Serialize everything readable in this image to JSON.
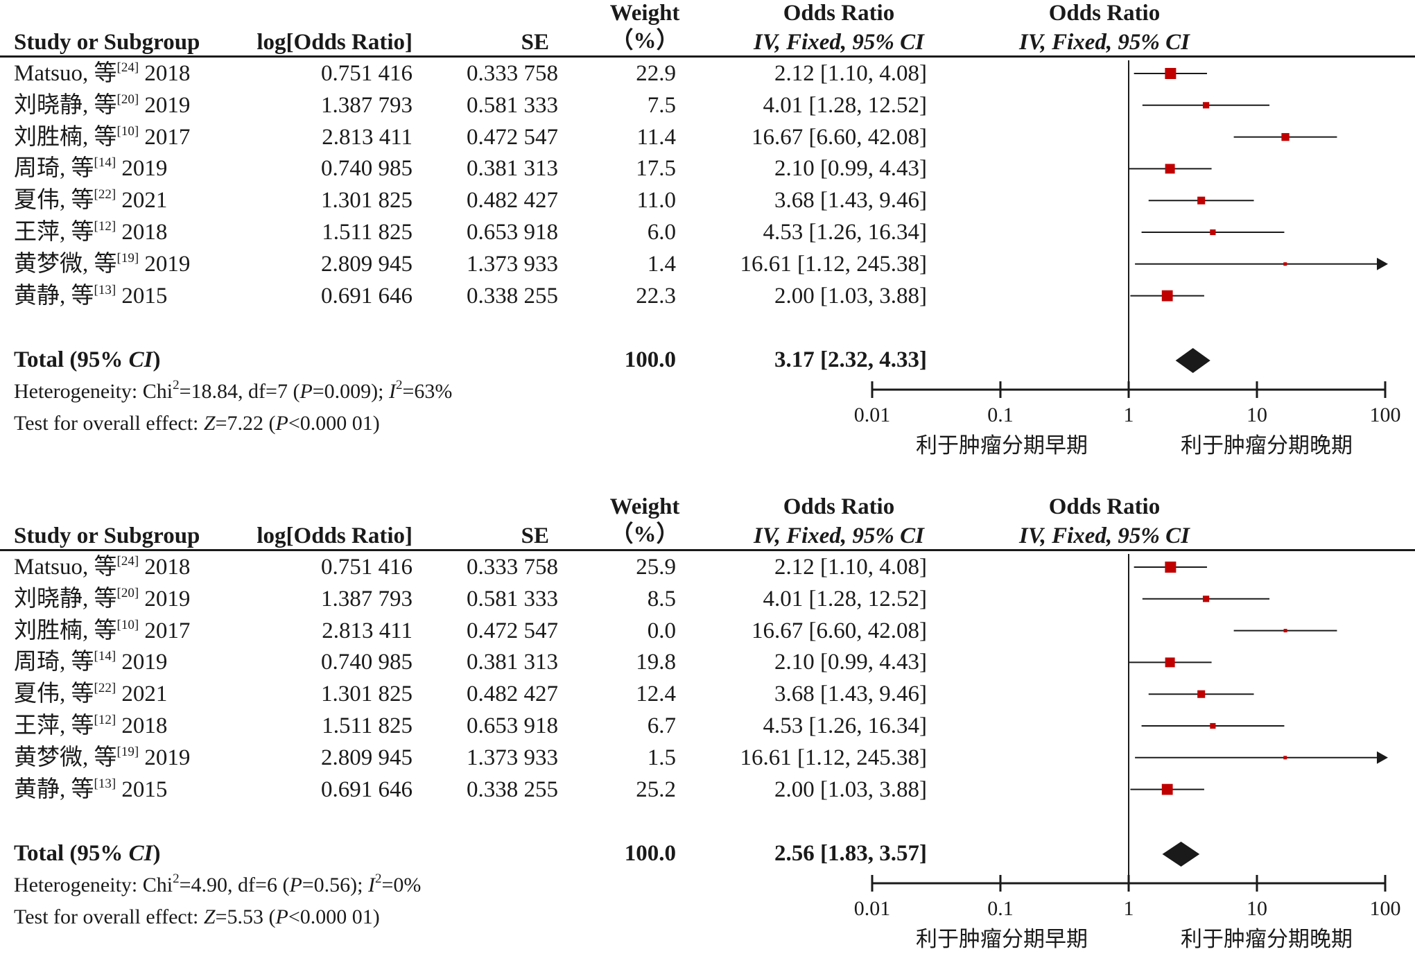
{
  "columns": {
    "weight_line1": "Weight",
    "weight_line2": "（%）",
    "study": "Study or Subgroup",
    "log_or": "log[Odds Ratio]",
    "se": "SE",
    "or_title": "Odds Ratio",
    "or_method": "IV, Fixed, 95% CI",
    "plot_title": "Odds Ratio",
    "plot_method": "IV, Fixed, 95% CI"
  },
  "panels": [
    {
      "studies": [
        {
          "name": "Matsuo, 等",
          "ref": "[24]",
          "year": "2018",
          "log_or": "0.751 416",
          "se": "0.333 758",
          "weight": "22.9",
          "ci_text": "2.12 [1.10, 4.08]"
        },
        {
          "name": "刘晓静, 等",
          "ref": "[20]",
          "year": "2019",
          "log_or": "1.387 793",
          "se": "0.581 333",
          "weight": "7.5",
          "ci_text": "4.01 [1.28, 12.52]"
        },
        {
          "name": "刘胜楠, 等",
          "ref": "[10]",
          "year": "2017",
          "log_or": "2.813 411",
          "se": "0.472 547",
          "weight": "11.4",
          "ci_text": "16.67 [6.60, 42.08]"
        },
        {
          "name": "周琦, 等",
          "ref": "[14]",
          "year": "2019",
          "log_or": "0.740 985",
          "se": "0.381 313",
          "weight": "17.5",
          "ci_text": "2.10 [0.99, 4.43]"
        },
        {
          "name": "夏伟, 等",
          "ref": "[22]",
          "year": "2021",
          "log_or": "1.301 825",
          "se": "0.482 427",
          "weight": "11.0",
          "ci_text": "3.68 [1.43, 9.46]"
        },
        {
          "name": "王萍, 等",
          "ref": "[12]",
          "year": "2018",
          "log_or": "1.511 825",
          "se": "0.653 918",
          "weight": "6.0",
          "ci_text": "4.53 [1.26, 16.34]"
        },
        {
          "name": "黄梦微, 等",
          "ref": "[19]",
          "year": "2019",
          "log_or": "2.809 945",
          "se": "1.373 933",
          "weight": "1.4",
          "ci_text": "16.61 [1.12, 245.38]"
        },
        {
          "name": "黄静, 等",
          "ref": "[13]",
          "year": "2015",
          "log_or": "0.691 646",
          "se": "0.338 255",
          "weight": "22.3",
          "ci_text": "2.00 [1.03, 3.88]"
        }
      ],
      "total": {
        "label": "Total (95% ",
        "label_ci": "CI",
        "label_close": ")",
        "weight": "100.0",
        "ci_text": "3.17 [2.32, 4.33]"
      },
      "heterogeneity": {
        "prefix": "Heterogeneity: Chi",
        "sup": "2",
        "text1": "=18.84, df=7 (",
        "p": "P",
        "text2": "=0.009); ",
        "i": "I",
        "sup2": "2",
        "text3": "=63%"
      },
      "overall": {
        "prefix": "Test for overall effect: ",
        "z": "Z",
        "text1": "=7.22 (",
        "p": "P",
        "text2": "<0.000 01)"
      }
    },
    {
      "studies": [
        {
          "name": "Matsuo, 等",
          "ref": "[24]",
          "year": "2018",
          "log_or": "0.751 416",
          "se": "0.333 758",
          "weight": "25.9",
          "ci_text": "2.12 [1.10, 4.08]"
        },
        {
          "name": "刘晓静, 等",
          "ref": "[20]",
          "year": "2019",
          "log_or": "1.387 793",
          "se": "0.581 333",
          "weight": "8.5",
          "ci_text": "4.01 [1.28, 12.52]"
        },
        {
          "name": "刘胜楠, 等",
          "ref": "[10]",
          "year": "2017",
          "log_or": "2.813 411",
          "se": "0.472 547",
          "weight": "0.0",
          "ci_text": "16.67 [6.60, 42.08]"
        },
        {
          "name": "周琦, 等",
          "ref": "[14]",
          "year": "2019",
          "log_or": "0.740 985",
          "se": "0.381 313",
          "weight": "19.8",
          "ci_text": "2.10 [0.99, 4.43]"
        },
        {
          "name": "夏伟, 等",
          "ref": "[22]",
          "year": "2021",
          "log_or": "1.301 825",
          "se": "0.482 427",
          "weight": "12.4",
          "ci_text": "3.68 [1.43, 9.46]"
        },
        {
          "name": "王萍, 等",
          "ref": "[12]",
          "year": "2018",
          "log_or": "1.511 825",
          "se": "0.653 918",
          "weight": "6.7",
          "ci_text": "4.53 [1.26, 16.34]"
        },
        {
          "name": "黄梦微, 等",
          "ref": "[19]",
          "year": "2019",
          "log_or": "2.809 945",
          "se": "1.373 933",
          "weight": "1.5",
          "ci_text": "16.61 [1.12, 245.38]"
        },
        {
          "name": "黄静, 等",
          "ref": "[13]",
          "year": "2015",
          "log_or": "0.691 646",
          "se": "0.338 255",
          "weight": "25.2",
          "ci_text": "2.00 [1.03, 3.88]"
        }
      ],
      "total": {
        "label": "Total (95% ",
        "label_ci": "CI",
        "label_close": ")",
        "weight": "100.0",
        "ci_text": "2.56 [1.83, 3.57]"
      },
      "heterogeneity": {
        "prefix": "Heterogeneity: Chi",
        "sup": "2",
        "text1": "=4.90, df=6 (",
        "p": "P",
        "text2": "=0.56); ",
        "i": "I",
        "sup2": "2",
        "text3": "=0%"
      },
      "overall": {
        "prefix": "Test for overall effect: ",
        "z": "Z",
        "text1": "=5.53 (",
        "p": "P",
        "text2": "<0.000 01)"
      }
    }
  ],
  "axis": {
    "ticks": [
      "0.01",
      "0.1",
      "1",
      "10",
      "100"
    ],
    "left_label": "利于肿瘤分期早期",
    "right_label": "利于肿瘤分期晚期"
  },
  "colors": {
    "marker": "#c00000",
    "line": "#1a1a1a"
  },
  "chart_data": [
    {
      "type": "forest",
      "x_scale": "log",
      "xlim": [
        0.01,
        100
      ],
      "x_ticks": [
        0.01,
        0.1,
        1,
        10,
        100
      ],
      "studies": [
        {
          "or": 2.12,
          "lo": 1.1,
          "hi": 4.08,
          "weight": 22.9
        },
        {
          "or": 4.01,
          "lo": 1.28,
          "hi": 12.52,
          "weight": 7.5
        },
        {
          "or": 16.67,
          "lo": 6.6,
          "hi": 42.08,
          "weight": 11.4
        },
        {
          "or": 2.1,
          "lo": 0.99,
          "hi": 4.43,
          "weight": 17.5
        },
        {
          "or": 3.68,
          "lo": 1.43,
          "hi": 9.46,
          "weight": 11.0
        },
        {
          "or": 4.53,
          "lo": 1.26,
          "hi": 16.34,
          "weight": 6.0
        },
        {
          "or": 16.61,
          "lo": 1.12,
          "hi": 245.38,
          "weight": 1.4
        },
        {
          "or": 2.0,
          "lo": 1.03,
          "hi": 3.88,
          "weight": 22.3
        }
      ],
      "pooled": {
        "or": 3.17,
        "lo": 2.32,
        "hi": 4.33
      }
    },
    {
      "type": "forest",
      "x_scale": "log",
      "xlim": [
        0.01,
        100
      ],
      "x_ticks": [
        0.01,
        0.1,
        1,
        10,
        100
      ],
      "studies": [
        {
          "or": 2.12,
          "lo": 1.1,
          "hi": 4.08,
          "weight": 25.9
        },
        {
          "or": 4.01,
          "lo": 1.28,
          "hi": 12.52,
          "weight": 8.5
        },
        {
          "or": 16.67,
          "lo": 6.6,
          "hi": 42.08,
          "weight": 0.0
        },
        {
          "or": 2.1,
          "lo": 0.99,
          "hi": 4.43,
          "weight": 19.8
        },
        {
          "or": 3.68,
          "lo": 1.43,
          "hi": 9.46,
          "weight": 12.4
        },
        {
          "or": 4.53,
          "lo": 1.26,
          "hi": 16.34,
          "weight": 6.7
        },
        {
          "or": 16.61,
          "lo": 1.12,
          "hi": 245.38,
          "weight": 1.5
        },
        {
          "or": 2.0,
          "lo": 1.03,
          "hi": 3.88,
          "weight": 25.2
        }
      ],
      "pooled": {
        "or": 2.56,
        "lo": 1.83,
        "hi": 3.57
      }
    }
  ]
}
